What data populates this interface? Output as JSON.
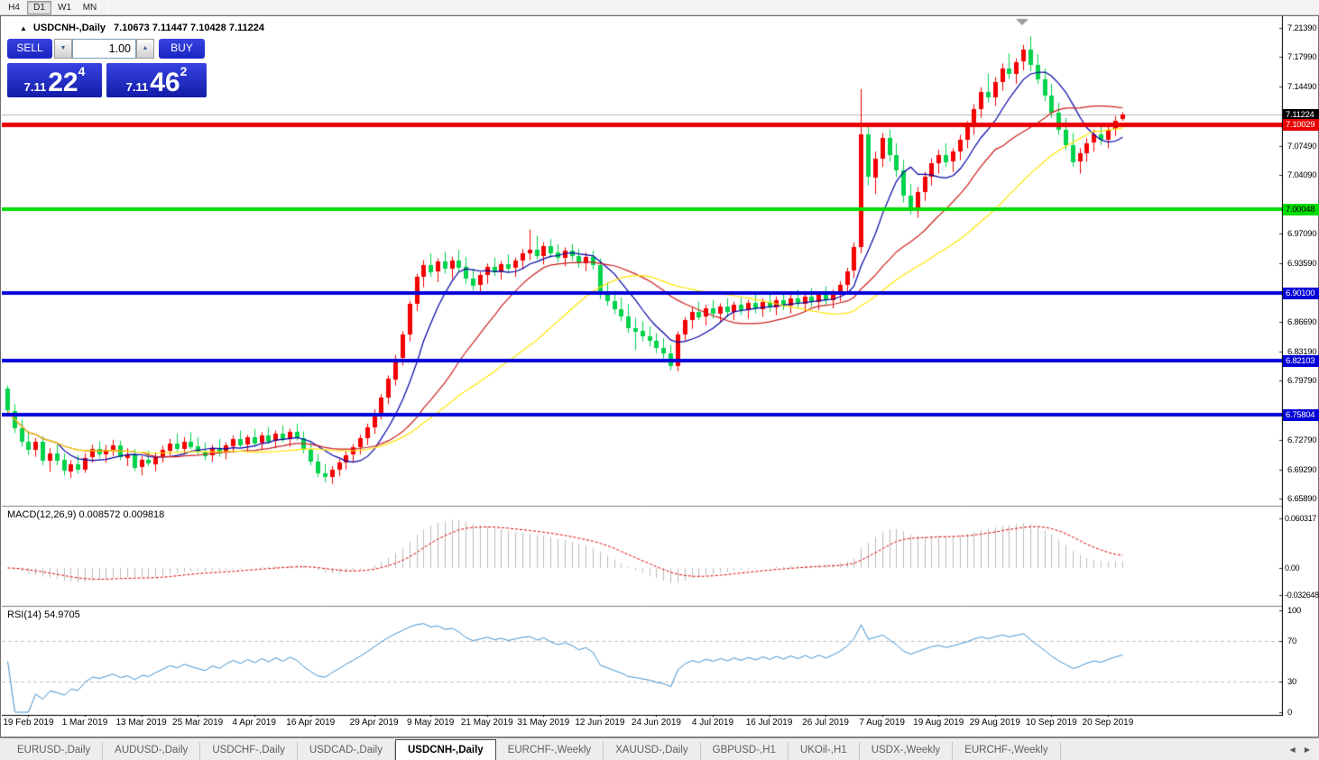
{
  "toolbar": {
    "timeframes": [
      {
        "label": "H4",
        "active": false
      },
      {
        "label": "D1",
        "active": true
      },
      {
        "label": "W1",
        "active": false
      },
      {
        "label": "MN",
        "active": false
      }
    ]
  },
  "chart": {
    "symbol_label": "USDCNH-,Daily",
    "ohlc_label": "7.10673 7.11447 7.10428 7.11224",
    "macd_label": "MACD(12,26,9) 0.008572 0.009818",
    "rsi_label": "RSI(14) 54.9705"
  },
  "trade_panel": {
    "sell_label": "SELL",
    "buy_label": "BUY",
    "volume": "1.00",
    "sell_price": {
      "small": "7.11",
      "big": "22",
      "sup": "4"
    },
    "buy_price": {
      "small": "7.11",
      "big": "46",
      "sup": "2"
    }
  },
  "price_axis": {
    "ticks": [
      {
        "label": "7.21390",
        "price": 7.2139
      },
      {
        "label": "7.17990",
        "price": 7.1799
      },
      {
        "label": "7.14490",
        "price": 7.1449
      },
      {
        "label": "7.07490",
        "price": 7.0749
      },
      {
        "label": "7.04090",
        "price": 7.0409
      },
      {
        "label": "6.97090",
        "price": 6.9709
      },
      {
        "label": "6.93590",
        "price": 6.9359
      },
      {
        "label": "6.86690",
        "price": 6.8669
      },
      {
        "label": "6.83190",
        "price": 6.8319
      },
      {
        "label": "6.79790",
        "price": 6.7979
      },
      {
        "label": "6.72790",
        "price": 6.7279
      },
      {
        "label": "6.69290",
        "price": 6.6929
      },
      {
        "label": "6.65890",
        "price": 6.6589
      }
    ],
    "badges": [
      {
        "label": "7.11224",
        "price": 7.11224,
        "bg": "#000000",
        "fg": "#ffffff"
      },
      {
        "label": "7.10029",
        "price": 7.10029,
        "bg": "#e80000",
        "fg": "#ffffff"
      },
      {
        "label": "7.00048",
        "price": 7.00048,
        "bg": "#00dc00",
        "fg": "#000000"
      },
      {
        "label": "6.90100",
        "price": 6.901,
        "bg": "#0000d8",
        "fg": "#ffffff"
      },
      {
        "label": "6.82103",
        "price": 6.82103,
        "bg": "#0000d8",
        "fg": "#ffffff"
      },
      {
        "label": "6.75804",
        "price": 6.75804,
        "bg": "#0000d8",
        "fg": "#ffffff"
      }
    ]
  },
  "macd_axis": [
    {
      "label": "0.060317",
      "value": 0.060317
    },
    {
      "label": "0.00",
      "value": 0
    },
    {
      "label": "-0.032648",
      "value": -0.032648
    }
  ],
  "rsi_axis": [
    {
      "label": "100",
      "value": 100
    },
    {
      "label": "70",
      "value": 70
    },
    {
      "label": "30",
      "value": 30
    },
    {
      "label": "0",
      "value": 0
    }
  ],
  "date_axis": [
    {
      "label": "19 Feb 2019",
      "index": 3
    },
    {
      "label": "1 Mar 2019",
      "index": 11
    },
    {
      "label": "13 Mar 2019",
      "index": 19
    },
    {
      "label": "25 Mar 2019",
      "index": 27
    },
    {
      "label": "4 Apr 2019",
      "index": 35
    },
    {
      "label": "16 Apr 2019",
      "index": 43
    },
    {
      "label": "29 Apr 2019",
      "index": 52
    },
    {
      "label": "9 May 2019",
      "index": 60
    },
    {
      "label": "21 May 2019",
      "index": 68
    },
    {
      "label": "31 May 2019",
      "index": 76
    },
    {
      "label": "12 Jun 2019",
      "index": 84
    },
    {
      "label": "24 Jun 2019",
      "index": 92
    },
    {
      "label": "4 Jul 2019",
      "index": 100
    },
    {
      "label": "16 Jul 2019",
      "index": 108
    },
    {
      "label": "26 Jul 2019",
      "index": 116
    },
    {
      "label": "7 Aug 2019",
      "index": 124
    },
    {
      "label": "19 Aug 2019",
      "index": 132
    },
    {
      "label": "29 Aug 2019",
      "index": 140
    },
    {
      "label": "10 Sep 2019",
      "index": 148
    },
    {
      "label": "20 Sep 2019",
      "index": 156
    }
  ],
  "tabs": [
    {
      "label": "EURUSD-,Daily",
      "active": false
    },
    {
      "label": "AUDUSD-,Daily",
      "active": false
    },
    {
      "label": "USDCHF-,Daily",
      "active": false
    },
    {
      "label": "USDCAD-,Daily",
      "active": false
    },
    {
      "label": "USDCNH-,Daily",
      "active": true
    },
    {
      "label": "EURCHF-,Weekly",
      "active": false
    },
    {
      "label": "XAUUSD-,Daily",
      "active": false
    },
    {
      "label": "GBPUSD-,H1",
      "active": false
    },
    {
      "label": "UKOil-,H1",
      "active": false
    },
    {
      "label": "USDX-,Weekly",
      "active": false
    },
    {
      "label": "EURCHF-,Weekly",
      "active": false
    }
  ],
  "chart_data": {
    "type": "candlestick",
    "symbol": "USDCNH-",
    "timeframe": "Daily",
    "up_color": "#f40000",
    "down_color": "#00d24b",
    "price_range": {
      "top": 7.2257,
      "bottom": 6.6512
    },
    "current_price_line": {
      "price": 7.11224,
      "color": "#b4b4b4"
    },
    "hlines": [
      {
        "price": 7.10029,
        "color": "#e80000",
        "width": 5
      },
      {
        "price": 7.00048,
        "color": "#00dc00",
        "width": 4
      },
      {
        "price": 6.901,
        "color": "#0000d8",
        "width": 4
      },
      {
        "price": 6.82103,
        "color": "#0000d8",
        "width": 4
      },
      {
        "price": 6.75804,
        "color": "#0000d8",
        "width": 4
      }
    ],
    "moving_averages": [
      {
        "period": 8,
        "color": "#0000a8"
      },
      {
        "period": 20,
        "color": "#cc2020"
      },
      {
        "period": 34,
        "color": "#ffe400"
      }
    ],
    "macd": {
      "fast": 12,
      "slow": 26,
      "signal": 9,
      "hist_color": "#bdbdbd",
      "signal_color": "#e00000"
    },
    "rsi": {
      "period": 14,
      "color": "#4092d0",
      "levels": [
        70,
        30
      ]
    },
    "ohlc": [
      [
        6.788,
        6.792,
        6.756,
        6.762
      ],
      [
        6.762,
        6.77,
        6.736,
        6.742
      ],
      [
        6.742,
        6.752,
        6.72,
        6.726
      ],
      [
        6.726,
        6.738,
        6.71,
        6.716
      ],
      [
        6.716,
        6.73,
        6.708,
        6.726
      ],
      [
        6.726,
        6.732,
        6.698,
        6.704
      ],
      [
        6.704,
        6.718,
        6.69,
        6.712
      ],
      [
        6.712,
        6.722,
        6.698,
        6.704
      ],
      [
        6.704,
        6.712,
        6.686,
        6.691
      ],
      [
        6.691,
        6.704,
        6.683,
        6.699
      ],
      [
        6.699,
        6.71,
        6.688,
        6.693
      ],
      [
        6.693,
        6.712,
        6.689,
        6.707
      ],
      [
        6.707,
        6.722,
        6.701,
        6.717
      ],
      [
        6.717,
        6.726,
        6.707,
        6.711
      ],
      [
        6.711,
        6.722,
        6.701,
        6.716
      ],
      [
        6.716,
        6.728,
        6.709,
        6.721
      ],
      [
        6.721,
        6.727,
        6.704,
        6.707
      ],
      [
        6.707,
        6.718,
        6.697,
        6.711
      ],
      [
        6.711,
        6.717,
        6.691,
        6.695
      ],
      [
        6.695,
        6.709,
        6.686,
        6.704
      ],
      [
        6.704,
        6.715,
        6.697,
        6.7
      ],
      [
        6.7,
        6.713,
        6.691,
        6.708
      ],
      [
        6.708,
        6.721,
        6.701,
        6.716
      ],
      [
        6.716,
        6.729,
        6.709,
        6.724
      ],
      [
        6.724,
        6.735,
        6.714,
        6.718
      ],
      [
        6.718,
        6.731,
        6.711,
        6.726
      ],
      [
        6.726,
        6.737,
        6.717,
        6.72
      ],
      [
        6.72,
        6.731,
        6.711,
        6.714
      ],
      [
        6.714,
        6.725,
        6.704,
        6.709
      ],
      [
        6.709,
        6.722,
        6.702,
        6.718
      ],
      [
        6.718,
        6.729,
        6.708,
        6.712
      ],
      [
        6.712,
        6.725,
        6.705,
        6.721
      ],
      [
        6.721,
        6.733,
        6.713,
        6.729
      ],
      [
        6.729,
        6.739,
        6.719,
        6.722
      ],
      [
        6.722,
        6.734,
        6.714,
        6.731
      ],
      [
        6.731,
        6.741,
        6.721,
        6.724
      ],
      [
        6.724,
        6.737,
        6.716,
        6.733
      ],
      [
        6.733,
        6.743,
        6.723,
        6.726
      ],
      [
        6.726,
        6.739,
        6.718,
        6.735
      ],
      [
        6.735,
        6.745,
        6.725,
        6.728
      ],
      [
        6.728,
        6.741,
        6.72,
        6.737
      ],
      [
        6.737,
        6.747,
        6.727,
        6.73
      ],
      [
        6.73,
        6.738,
        6.712,
        6.716
      ],
      [
        6.716,
        6.725,
        6.698,
        6.702
      ],
      [
        6.702,
        6.711,
        6.684,
        6.688
      ],
      [
        6.688,
        6.699,
        6.678,
        6.684
      ],
      [
        6.684,
        6.697,
        6.676,
        6.693
      ],
      [
        6.693,
        6.705,
        6.685,
        6.701
      ],
      [
        6.701,
        6.714,
        6.693,
        6.71
      ],
      [
        6.71,
        6.723,
        6.702,
        6.719
      ],
      [
        6.719,
        6.734,
        6.711,
        6.73
      ],
      [
        6.73,
        6.747,
        6.722,
        6.743
      ],
      [
        6.743,
        6.764,
        6.735,
        6.76
      ],
      [
        6.76,
        6.782,
        6.752,
        6.778
      ],
      [
        6.778,
        6.804,
        6.77,
        6.8
      ],
      [
        6.8,
        6.828,
        6.792,
        6.824
      ],
      [
        6.824,
        6.856,
        6.816,
        6.852
      ],
      [
        6.852,
        6.892,
        6.844,
        6.888
      ],
      [
        6.888,
        6.924,
        6.88,
        6.92
      ],
      [
        6.92,
        6.94,
        6.908,
        6.934
      ],
      [
        6.934,
        6.948,
        6.92,
        6.926
      ],
      [
        6.926,
        6.942,
        6.914,
        6.938
      ],
      [
        6.938,
        6.95,
        6.924,
        6.93
      ],
      [
        6.93,
        6.944,
        6.918,
        6.94
      ],
      [
        6.94,
        6.952,
        6.926,
        6.932
      ],
      [
        6.932,
        6.944,
        6.912,
        6.918
      ],
      [
        6.918,
        6.93,
        6.904,
        6.91
      ],
      [
        6.91,
        6.926,
        6.901,
        6.922
      ],
      [
        6.922,
        6.936,
        6.912,
        6.932
      ],
      [
        6.932,
        6.943,
        6.921,
        6.926
      ],
      [
        6.926,
        6.939,
        6.917,
        6.935
      ],
      [
        6.935,
        6.947,
        6.925,
        6.93
      ],
      [
        6.93,
        6.943,
        6.92,
        6.939
      ],
      [
        6.939,
        6.953,
        6.929,
        6.948
      ],
      [
        6.948,
        6.976,
        6.94,
        6.952
      ],
      [
        6.952,
        6.969,
        6.941,
        6.945
      ],
      [
        6.945,
        6.961,
        6.935,
        6.957
      ],
      [
        6.957,
        6.965,
        6.943,
        6.949
      ],
      [
        6.949,
        6.959,
        6.937,
        6.943
      ],
      [
        6.943,
        6.955,
        6.933,
        6.951
      ],
      [
        6.951,
        6.959,
        6.939,
        6.945
      ],
      [
        6.945,
        6.953,
        6.931,
        6.937
      ],
      [
        6.937,
        6.949,
        6.927,
        6.944
      ],
      [
        6.944,
        6.951,
        6.929,
        6.934
      ],
      [
        6.934,
        6.942,
        6.894,
        6.9
      ],
      [
        6.9,
        6.914,
        6.886,
        6.892
      ],
      [
        6.892,
        6.904,
        6.876,
        6.882
      ],
      [
        6.882,
        6.896,
        6.868,
        6.874
      ],
      [
        6.874,
        6.888,
        6.854,
        6.86
      ],
      [
        6.86,
        6.872,
        6.834,
        6.856
      ],
      [
        6.856,
        6.868,
        6.844,
        6.85
      ],
      [
        6.85,
        6.862,
        6.838,
        6.845
      ],
      [
        6.845,
        6.854,
        6.83,
        6.836
      ],
      [
        6.836,
        6.848,
        6.824,
        6.83
      ],
      [
        6.83,
        6.84,
        6.81,
        6.815
      ],
      [
        6.815,
        6.856,
        6.809,
        6.852
      ],
      [
        6.852,
        6.873,
        6.845,
        6.869
      ],
      [
        6.869,
        6.885,
        6.859,
        6.879
      ],
      [
        6.879,
        6.891,
        6.869,
        6.873
      ],
      [
        6.873,
        6.887,
        6.863,
        6.883
      ],
      [
        6.883,
        6.893,
        6.871,
        6.877
      ],
      [
        6.877,
        6.889,
        6.867,
        6.885
      ],
      [
        6.885,
        6.895,
        6.873,
        6.879
      ],
      [
        6.879,
        6.891,
        6.869,
        6.887
      ],
      [
        6.887,
        6.897,
        6.875,
        6.881
      ],
      [
        6.881,
        6.893,
        6.871,
        6.889
      ],
      [
        6.889,
        6.899,
        6.877,
        6.883
      ],
      [
        6.883,
        6.895,
        6.873,
        6.891
      ],
      [
        6.891,
        6.901,
        6.879,
        6.885
      ],
      [
        6.885,
        6.897,
        6.875,
        6.893
      ],
      [
        6.893,
        6.903,
        6.881,
        6.887
      ],
      [
        6.887,
        6.899,
        6.877,
        6.895
      ],
      [
        6.895,
        6.905,
        6.883,
        6.889
      ],
      [
        6.889,
        6.901,
        6.879,
        6.897
      ],
      [
        6.897,
        6.907,
        6.885,
        6.891
      ],
      [
        6.891,
        6.903,
        6.881,
        6.899
      ],
      [
        6.899,
        6.909,
        6.887,
        6.893
      ],
      [
        6.893,
        6.905,
        6.883,
        6.901
      ],
      [
        6.901,
        6.915,
        6.891,
        6.911
      ],
      [
        6.911,
        6.931,
        6.903,
        6.927
      ],
      [
        6.927,
        6.961,
        6.919,
        6.955
      ],
      [
        6.955,
        7.142,
        6.948,
        7.088
      ],
      [
        7.088,
        7.098,
        7.028,
        7.038
      ],
      [
        7.038,
        7.068,
        7.018,
        7.06
      ],
      [
        7.06,
        7.09,
        7.05,
        7.084
      ],
      [
        7.084,
        7.094,
        7.056,
        7.064
      ],
      [
        7.064,
        7.078,
        7.038,
        7.046
      ],
      [
        7.046,
        7.058,
        7.008,
        7.016
      ],
      [
        7.016,
        7.03,
        6.994,
        7.002
      ],
      [
        7.002,
        7.026,
        6.99,
        7.02
      ],
      [
        7.02,
        7.044,
        7.01,
        7.038
      ],
      [
        7.038,
        7.06,
        7.028,
        7.054
      ],
      [
        7.054,
        7.07,
        7.042,
        7.064
      ],
      [
        7.064,
        7.078,
        7.05,
        7.056
      ],
      [
        7.056,
        7.072,
        7.044,
        7.068
      ],
      [
        7.068,
        7.088,
        7.058,
        7.082
      ],
      [
        7.082,
        7.104,
        7.072,
        7.098
      ],
      [
        7.098,
        7.124,
        7.088,
        7.118
      ],
      [
        7.118,
        7.144,
        7.108,
        7.138
      ],
      [
        7.138,
        7.16,
        7.126,
        7.132
      ],
      [
        7.132,
        7.156,
        7.122,
        7.15
      ],
      [
        7.15,
        7.172,
        7.14,
        7.166
      ],
      [
        7.166,
        7.184,
        7.154,
        7.16
      ],
      [
        7.16,
        7.178,
        7.148,
        7.174
      ],
      [
        7.174,
        7.194,
        7.164,
        7.188
      ],
      [
        7.188,
        7.204,
        7.163,
        7.17
      ],
      [
        7.17,
        7.183,
        7.148,
        7.153
      ],
      [
        7.153,
        7.166,
        7.128,
        7.134
      ],
      [
        7.134,
        7.148,
        7.108,
        7.114
      ],
      [
        7.114,
        7.126,
        7.088,
        7.094
      ],
      [
        7.094,
        7.108,
        7.07,
        7.076
      ],
      [
        7.076,
        7.09,
        7.05,
        7.056
      ],
      [
        7.056,
        7.072,
        7.042,
        7.066
      ],
      [
        7.066,
        7.084,
        7.056,
        7.078
      ],
      [
        7.078,
        7.094,
        7.068,
        7.088
      ],
      [
        7.088,
        7.102,
        7.076,
        7.082
      ],
      [
        7.082,
        7.098,
        7.072,
        7.094
      ],
      [
        7.094,
        7.11,
        7.086,
        7.104
      ],
      [
        7.10673,
        7.11447,
        7.10428,
        7.11224
      ]
    ]
  }
}
